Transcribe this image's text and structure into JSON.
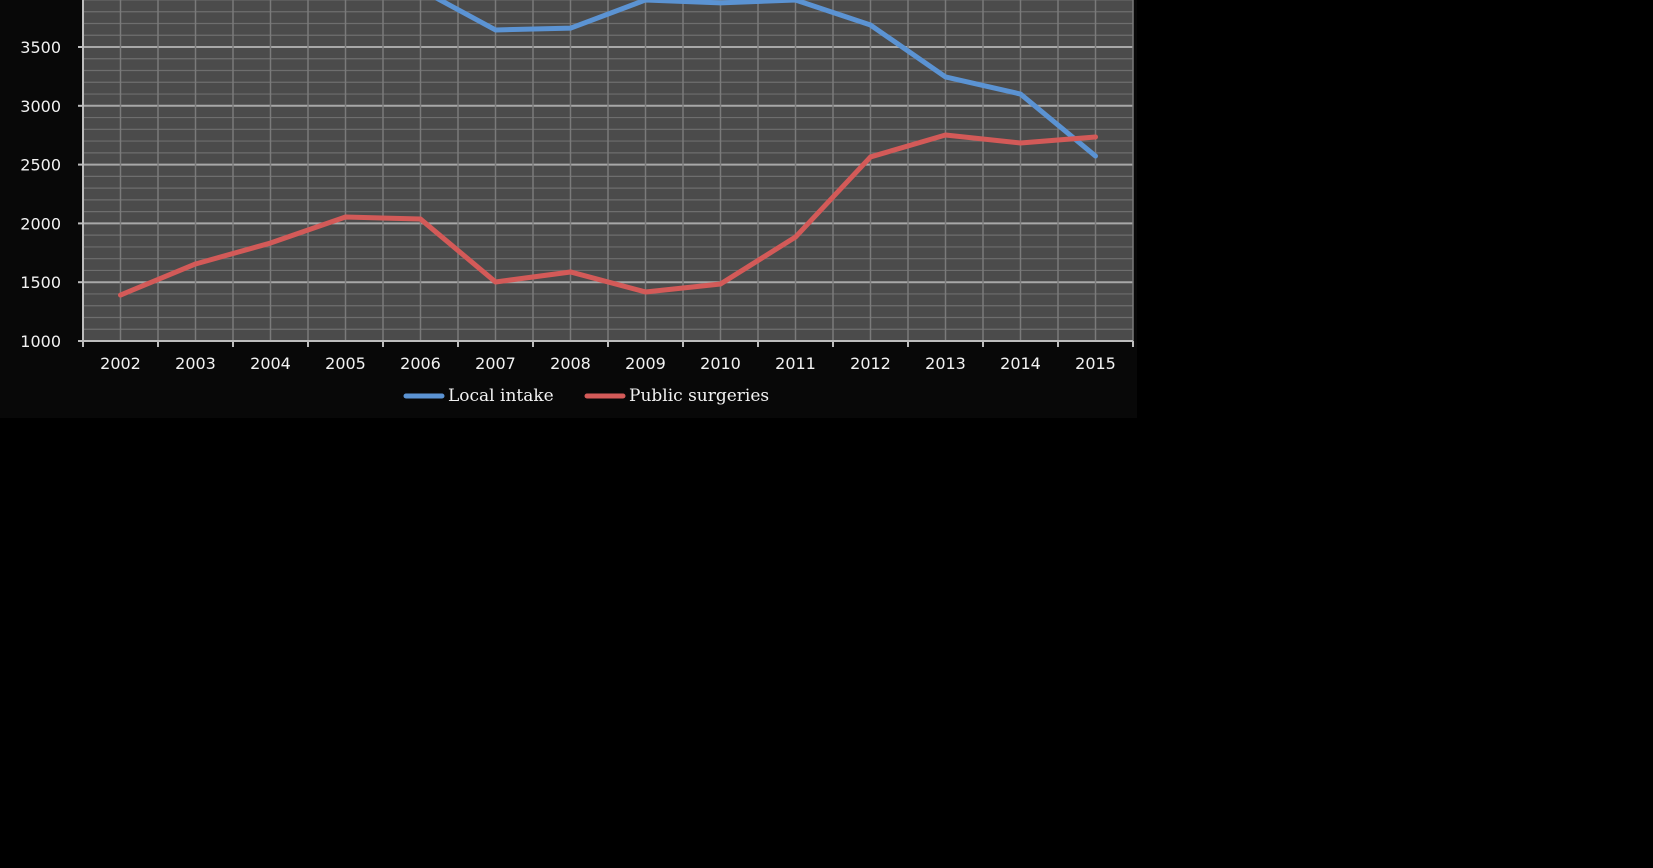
{
  "chart_data": {
    "type": "line",
    "title": "",
    "xlabel": "",
    "ylabel": "",
    "categories": [
      "2002",
      "2003",
      "2004",
      "2005",
      "2006",
      "2007",
      "2008",
      "2009",
      "2010",
      "2011",
      "2012",
      "2013",
      "2014",
      "2015"
    ],
    "y_ticks": [
      "1000",
      "1500",
      "2000",
      "2500",
      "3000",
      "3500"
    ],
    "ylim": [
      1000,
      3900
    ],
    "grid": true,
    "legend_position": "bottom",
    "series": [
      {
        "name": "Local intake",
        "color": "#5b93d3",
        "values": [
          null,
          null,
          null,
          null,
          3990,
          3645,
          3660,
          3900,
          3875,
          3900,
          3687,
          3245,
          3100,
          2573
        ]
      },
      {
        "name": "Public surgeries",
        "color": "#d35a58",
        "values": [
          1391,
          1655,
          1833,
          2054,
          2037,
          1502,
          1587,
          1417,
          1485,
          1884,
          2565,
          2752,
          2684,
          2735
        ]
      }
    ]
  }
}
